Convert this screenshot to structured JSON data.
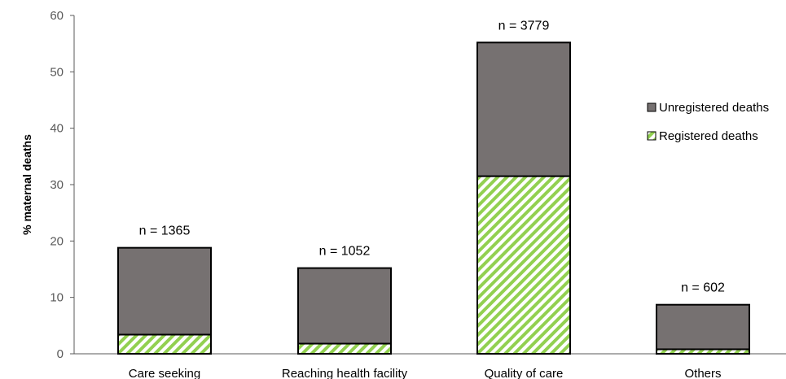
{
  "chart_data": {
    "type": "bar",
    "stacked": true,
    "categories": [
      "Care seeking",
      "Reaching health facility",
      "Quality of care",
      "Others"
    ],
    "series": [
      {
        "name": "Registered deaths",
        "values": [
          3.4,
          1.8,
          31.5,
          0.8
        ],
        "color": "#92d050",
        "pattern": "diagonal-hatch"
      },
      {
        "name": "Unregistered deaths",
        "values": [
          15.4,
          13.4,
          23.7,
          7.9
        ],
        "color": "#767171"
      }
    ],
    "annotations": [
      "n = 1365",
      "n = 1052",
      "n = 3779",
      "n = 602"
    ],
    "ylabel": "% maternal deaths",
    "xlabel": "",
    "ylim": [
      0,
      60
    ],
    "yticks": [
      0,
      10,
      20,
      30,
      40,
      50,
      60
    ],
    "grid": false,
    "legend_position": "right",
    "legend": [
      "Unregistered deaths",
      "Registered deaths"
    ]
  }
}
